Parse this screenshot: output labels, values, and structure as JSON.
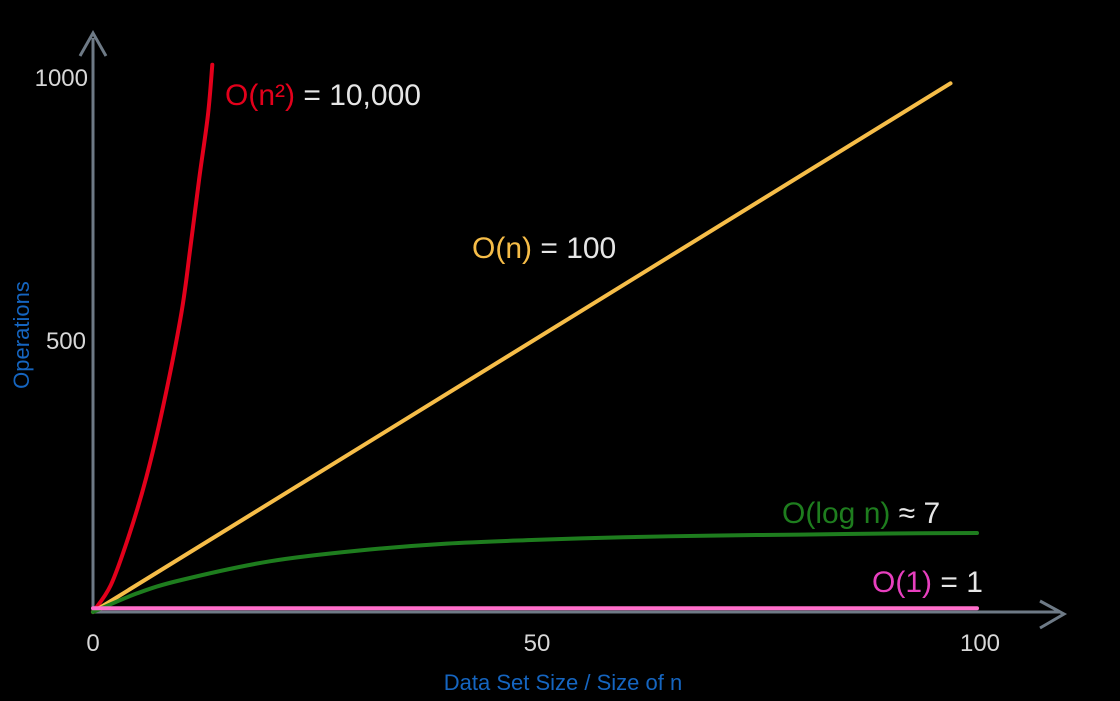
{
  "chart_data": {
    "type": "line",
    "xlabel": "Data Set Size / Size of n",
    "ylabel": "Operations",
    "xlim": [
      0,
      100
    ],
    "ylim": [
      0,
      1000
    ],
    "x_ticks": [
      "0",
      "50",
      "100"
    ],
    "y_ticks": [
      "500",
      "1000"
    ],
    "grid": false,
    "colors": {
      "background": "#000000",
      "axis": "#6e7a86",
      "tick_text": "#d7d7d7",
      "axis_label": "#1565c0",
      "equals_text": "#e6e6e6"
    },
    "series": [
      {
        "name": "O(n²)",
        "color": "#e3001b",
        "x": [
          0,
          2,
          4,
          6,
          8,
          10,
          11,
          12,
          13,
          13.5
        ],
        "y": [
          0,
          50,
          140,
          250,
          390,
          560,
          680,
          810,
          930,
          1025
        ]
      },
      {
        "name": "O(n)",
        "color": "#f6bd48",
        "x": [
          0,
          97
        ],
        "y": [
          0,
          990
        ]
      },
      {
        "name": "O(log n)",
        "color": "#1e7d1e",
        "x": [
          0,
          5,
          10,
          20,
          30,
          40,
          50,
          60,
          70,
          80,
          90,
          100
        ],
        "y": [
          0,
          35,
          60,
          95,
          115,
          128,
          135,
          140,
          143,
          145,
          147,
          148
        ]
      },
      {
        "name": "O(1)",
        "color": "#ff6fcb",
        "x": [
          0,
          100
        ],
        "y": [
          7,
          7
        ]
      }
    ],
    "annotations": [
      {
        "name_text": "O(n²)",
        "rest_text": " = 10,000",
        "color": "#e3001b"
      },
      {
        "name_text": "O(n)",
        "rest_text": " = 100",
        "color": "#f6bd48"
      },
      {
        "name_text": "O(log n)",
        "rest_text": " ≈ 7",
        "color": "#1e7d1e"
      },
      {
        "name_text": "O(1)",
        "rest_text": " = 1",
        "color": "#e83fbf"
      }
    ]
  }
}
